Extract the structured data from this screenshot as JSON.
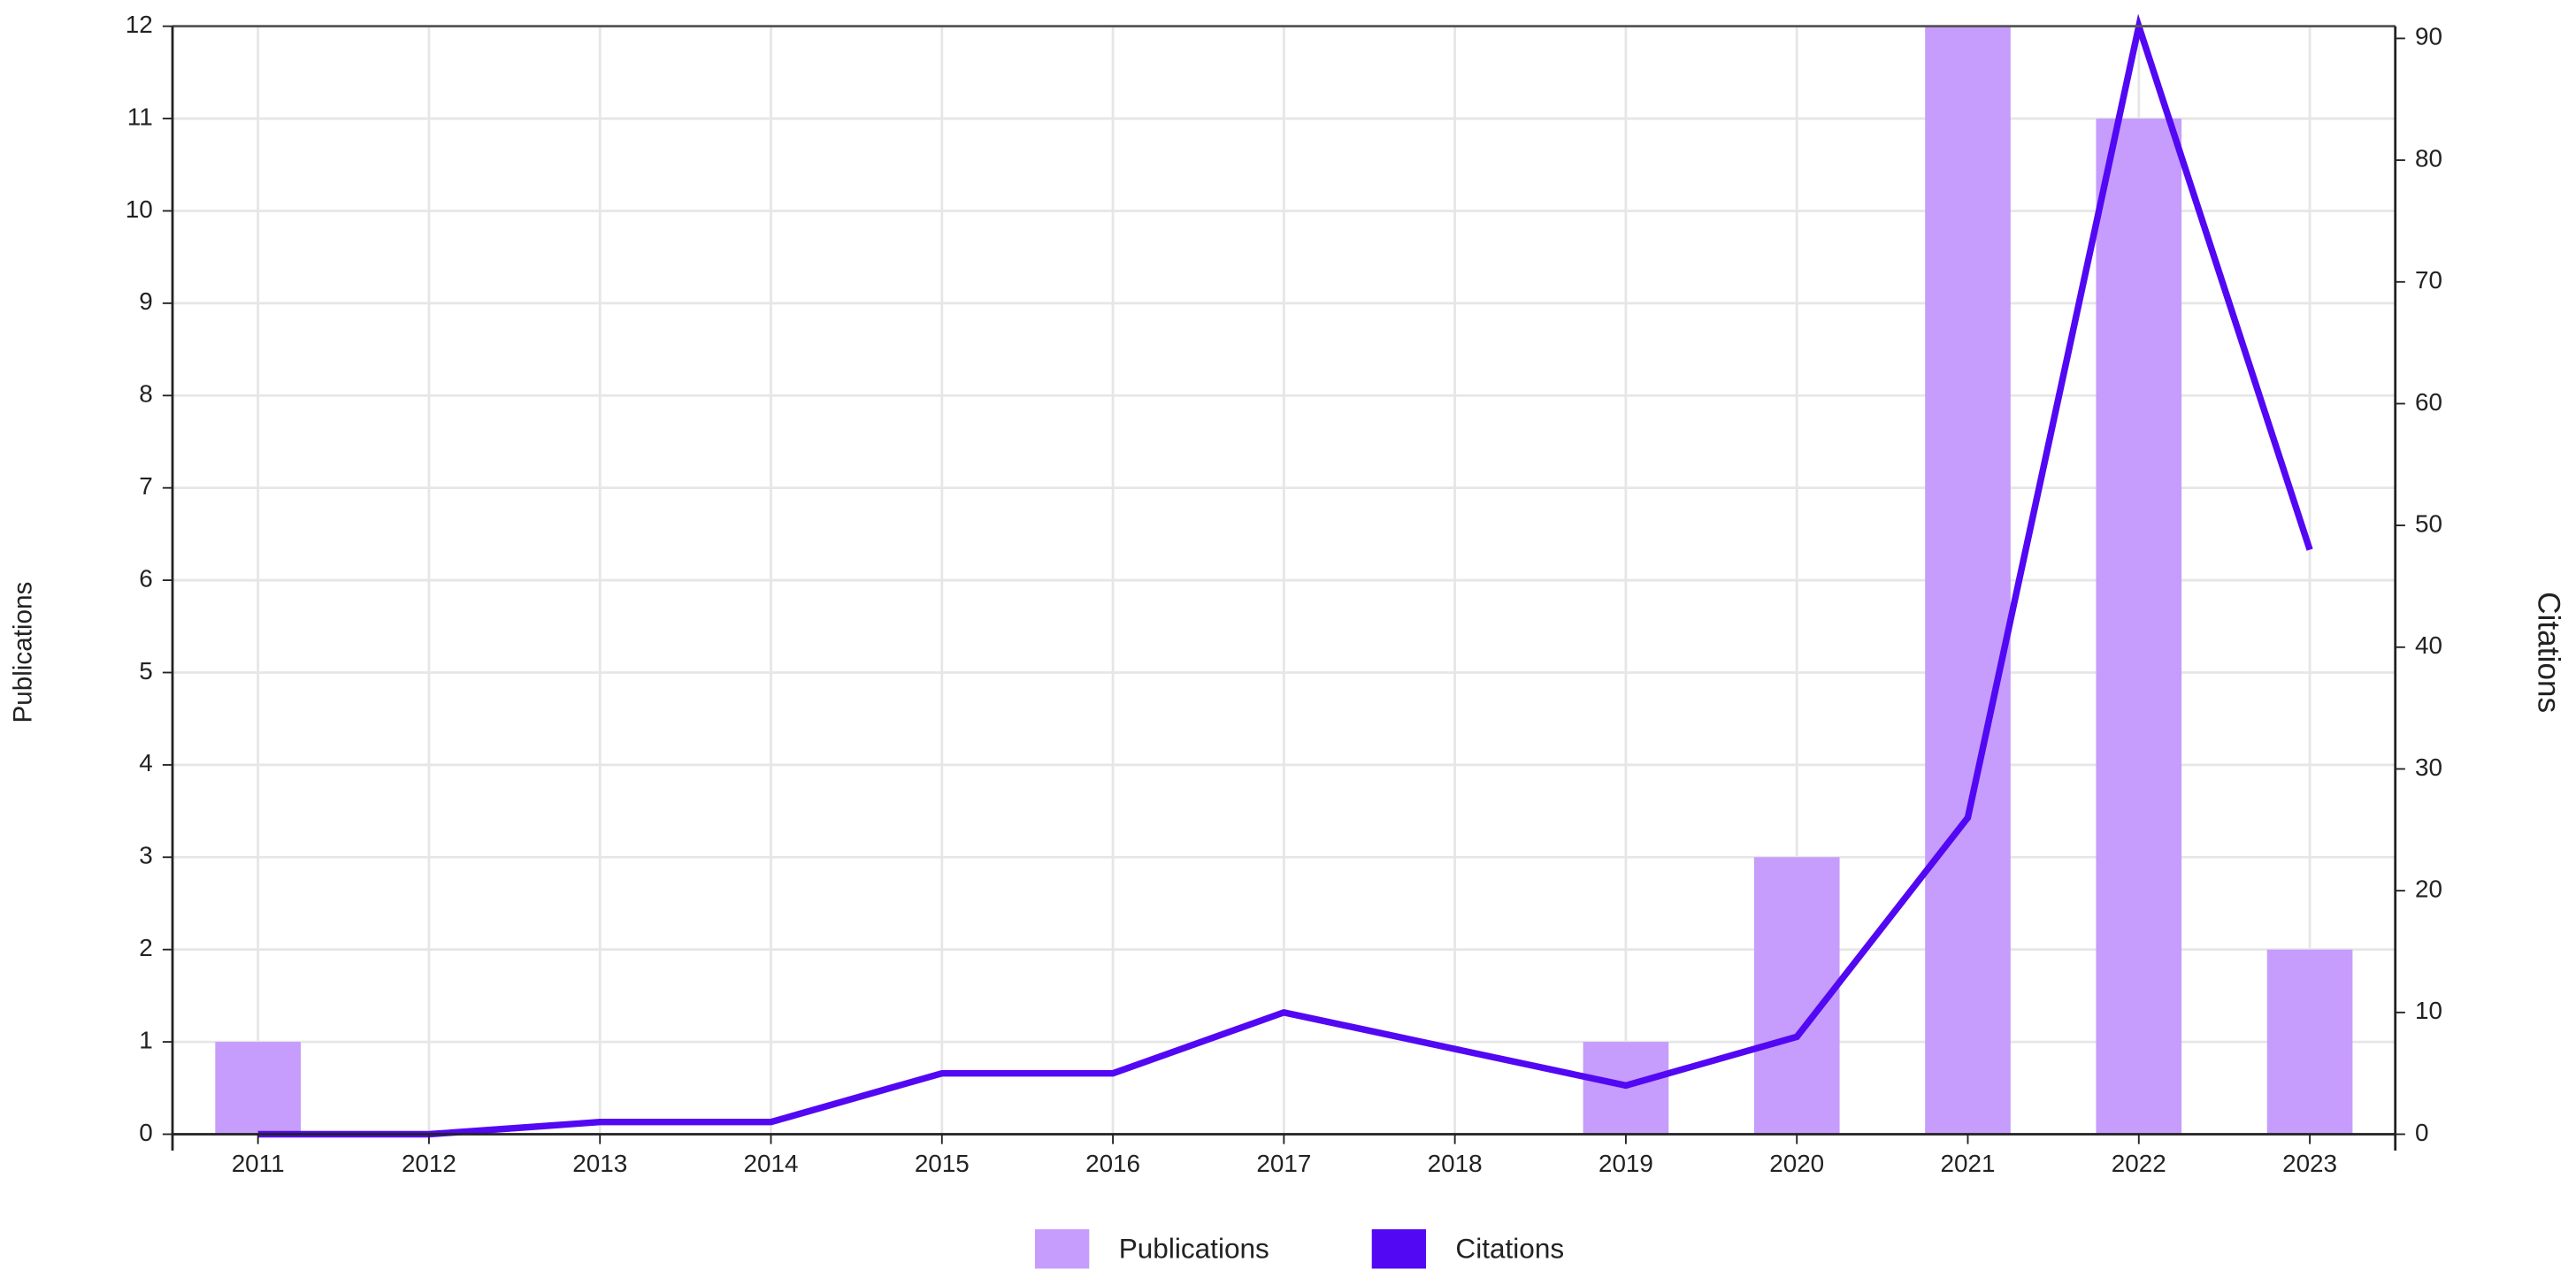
{
  "chart_data": {
    "type": "bar",
    "categories": [
      "2011",
      "2012",
      "2013",
      "2014",
      "2015",
      "2016",
      "2017",
      "2018",
      "2019",
      "2020",
      "2021",
      "2022",
      "2023"
    ],
    "series": [
      {
        "name": "Publications",
        "type": "bar",
        "axis": "y",
        "color": "#c69cfc",
        "values": [
          1,
          0,
          0,
          0,
          0,
          0,
          0,
          0,
          1,
          3,
          12,
          11,
          2
        ]
      },
      {
        "name": "Citations",
        "type": "line",
        "axis": "y2",
        "color": "#5308f3",
        "values": [
          0,
          0,
          1,
          1,
          5,
          5,
          10,
          7,
          4,
          8,
          26,
          91,
          48
        ]
      }
    ],
    "ylabel": "Publications",
    "y2label": "Citations",
    "ylim": [
      0,
      12
    ],
    "yticks": [
      0,
      1,
      2,
      3,
      4,
      5,
      6,
      7,
      8,
      9,
      10,
      11,
      12
    ],
    "y2lim": [
      0,
      91
    ],
    "y2ticks": [
      0,
      10,
      20,
      30,
      40,
      50,
      60,
      70,
      80,
      90
    ],
    "grid": true,
    "legend": "bottom"
  }
}
